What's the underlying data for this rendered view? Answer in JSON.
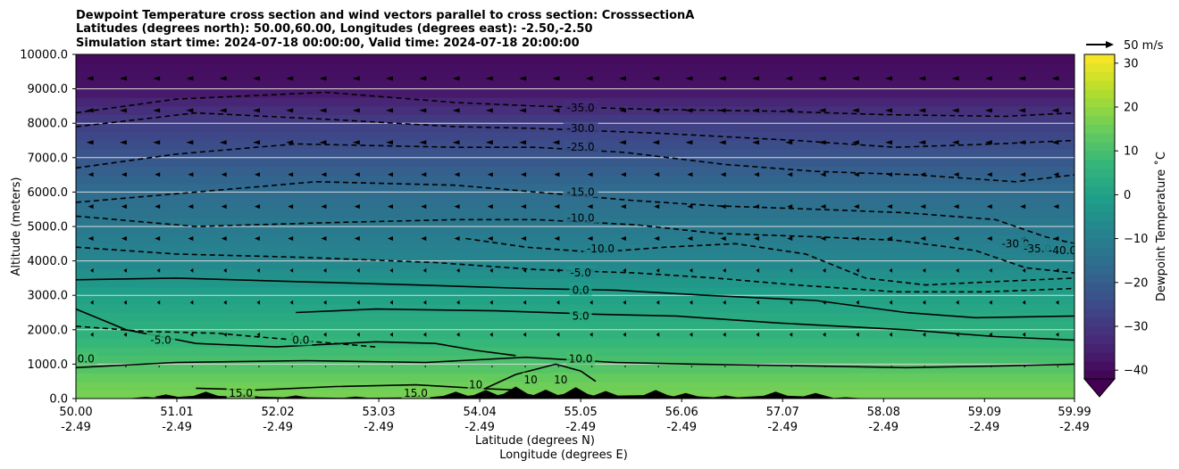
{
  "chart_data": {
    "type": "heatmap",
    "title_lines": [
      "Dewpoint Temperature cross section and wind vectors parallel to cross section: CrosssectionA",
      "Latitudes (degrees north): 50.00,60.00, Longitudes (degrees east): -2.50,-2.50",
      "Simulation start time: 2024-07-18 00:00:00, Valid time: 2024-07-18 20:00:00"
    ],
    "ylabel": "Altitude (meters)",
    "xlabel_lines": [
      "Latitude (degrees N)",
      "Longitude (degrees E)"
    ],
    "ylim": [
      0,
      10000
    ],
    "y_ticks": [
      "0.0",
      "1000.0",
      "2000.0",
      "3000.0",
      "4000.0",
      "5000.0",
      "6000.0",
      "7000.0",
      "8000.0",
      "9000.0",
      "10000.0"
    ],
    "y_tick_values": [
      0,
      1000,
      2000,
      3000,
      4000,
      5000,
      6000,
      7000,
      8000,
      9000,
      10000
    ],
    "x_ticks": [
      {
        "lat": "50.00",
        "lon": "-2.49"
      },
      {
        "lat": "51.01",
        "lon": "-2.49"
      },
      {
        "lat": "52.02",
        "lon": "-2.49"
      },
      {
        "lat": "53.03",
        "lon": "-2.49"
      },
      {
        "lat": "54.04",
        "lon": "-2.49"
      },
      {
        "lat": "55.05",
        "lon": "-2.49"
      },
      {
        "lat": "56.06",
        "lon": "-2.49"
      },
      {
        "lat": "57.07",
        "lon": "-2.49"
      },
      {
        "lat": "58.08",
        "lon": "-2.49"
      },
      {
        "lat": "59.09",
        "lon": "-2.49"
      },
      {
        "lat": "59.99",
        "lon": "-2.49"
      }
    ],
    "xlim": [
      50.0,
      59.99
    ],
    "grid": "horizontal",
    "colorbar": {
      "label": "Dewpoint Temperature ˚C",
      "ticks": [
        "−40",
        "−30",
        "−20",
        "−10",
        "0",
        "10",
        "20",
        "30"
      ],
      "tick_values": [
        -40,
        -30,
        -20,
        -10,
        0,
        10,
        20,
        30
      ],
      "range": [
        -42,
        32
      ],
      "extend": "min",
      "colormap": [
        "#440154",
        "#482878",
        "#3e4989",
        "#31688e",
        "#26828e",
        "#1f9e89",
        "#35b779",
        "#6ece58",
        "#b5de2b",
        "#fde725"
      ]
    },
    "quiver_key": "50 m/s",
    "terrain_color": "#000000",
    "dewpoint_profile": [
      {
        "alt": 0,
        "t": 17
      },
      {
        "alt": 500,
        "t": 15
      },
      {
        "alt": 1000,
        "t": 11
      },
      {
        "alt": 2000,
        "t": 5
      },
      {
        "alt": 3000,
        "t": 0
      },
      {
        "alt": 3500,
        "t": -4
      },
      {
        "alt": 4000,
        "t": -8
      },
      {
        "alt": 5000,
        "t": -12
      },
      {
        "alt": 6000,
        "t": -16
      },
      {
        "alt": 7000,
        "t": -22
      },
      {
        "alt": 8000,
        "t": -28
      },
      {
        "alt": 9000,
        "t": -38
      },
      {
        "alt": 10000,
        "t": -40
      }
    ],
    "contour_labels": [
      {
        "text": "-35.0",
        "lat": 55.05,
        "alt": 8450
      },
      {
        "text": "-30.0",
        "lat": 55.05,
        "alt": 7850
      },
      {
        "text": "-25.0",
        "lat": 55.05,
        "alt": 7300
      },
      {
        "text": "-15.0",
        "lat": 55.05,
        "alt": 6000
      },
      {
        "text": "-10.0",
        "lat": 55.05,
        "alt": 5250
      },
      {
        "text": "-10.0",
        "lat": 55.25,
        "alt": 4350
      },
      {
        "text": "-5.0",
        "lat": 55.05,
        "alt": 3650
      },
      {
        "text": "0.0",
        "lat": 55.05,
        "alt": 3150
      },
      {
        "text": "5.0",
        "lat": 55.05,
        "alt": 2400
      },
      {
        "text": "10.0",
        "lat": 55.05,
        "alt": 1150
      },
      {
        "text": "-5.0",
        "lat": 50.85,
        "alt": 1700
      },
      {
        "text": "0.0",
        "lat": 52.25,
        "alt": 1700
      },
      {
        "text": "15.0",
        "lat": 51.65,
        "alt": 150
      },
      {
        "text": "15.0",
        "lat": 53.4,
        "alt": 150
      },
      {
        "text": "10",
        "lat": 54.0,
        "alt": 400
      },
      {
        "text": "10",
        "lat": 54.55,
        "alt": 550
      },
      {
        "text": "10",
        "lat": 54.85,
        "alt": 550
      },
      {
        "text": "0.0",
        "lat": 50.1,
        "alt": 1150
      },
      {
        "text": "-30.0",
        "lat": 59.4,
        "alt": 4500
      },
      {
        "text": "-35.0",
        "lat": 59.62,
        "alt": 4350
      },
      {
        "text": "-40.0",
        "lat": 59.87,
        "alt": 4300
      }
    ],
    "contours": [
      {
        "level": "-35.0",
        "dashed": true,
        "pts": [
          [
            50.0,
            8300
          ],
          [
            51.0,
            8700
          ],
          [
            52.5,
            8900
          ],
          [
            53.8,
            8600
          ],
          [
            54.6,
            8500
          ],
          [
            55.8,
            8400
          ],
          [
            57.0,
            8350
          ],
          [
            58.1,
            8250
          ],
          [
            59.3,
            8200
          ],
          [
            59.99,
            8300
          ]
        ]
      },
      {
        "level": "-30.0",
        "dashed": true,
        "pts": [
          [
            50.0,
            7900
          ],
          [
            51.2,
            8300
          ],
          [
            52.6,
            8100
          ],
          [
            53.8,
            7900
          ],
          [
            54.6,
            7850
          ],
          [
            55.9,
            7700
          ],
          [
            57.2,
            7500
          ],
          [
            58.2,
            7300
          ],
          [
            59.2,
            7400
          ],
          [
            59.99,
            7500
          ]
        ]
      },
      {
        "level": "-25.0",
        "dashed": true,
        "pts": [
          [
            50.0,
            6700
          ],
          [
            51.0,
            7100
          ],
          [
            52.2,
            7400
          ],
          [
            53.8,
            7300
          ],
          [
            54.6,
            7300
          ],
          [
            55.5,
            7150
          ],
          [
            56.5,
            6800
          ],
          [
            57.4,
            6600
          ],
          [
            58.4,
            6500
          ],
          [
            59.4,
            6300
          ],
          [
            59.99,
            6500
          ]
        ]
      },
      {
        "level": "-15.0",
        "dashed": true,
        "pts": [
          [
            50.0,
            5700
          ],
          [
            51.2,
            6000
          ],
          [
            52.4,
            6300
          ],
          [
            53.8,
            6200
          ],
          [
            54.6,
            6000
          ],
          [
            55.6,
            5750
          ],
          [
            56.4,
            5600
          ],
          [
            57.4,
            5500
          ],
          [
            58.3,
            5400
          ],
          [
            59.2,
            5200
          ],
          [
            59.7,
            4700
          ],
          [
            59.99,
            4500
          ]
        ]
      },
      {
        "level": "-10.0",
        "dashed": true,
        "pts": [
          [
            50.0,
            5300
          ],
          [
            51.2,
            5000
          ],
          [
            52.4,
            5100
          ],
          [
            53.8,
            5200
          ],
          [
            54.6,
            5200
          ],
          [
            55.6,
            5050
          ],
          [
            56.4,
            4800
          ],
          [
            57.4,
            4700
          ],
          [
            58.2,
            4600
          ],
          [
            59.0,
            4300
          ],
          [
            59.5,
            3800
          ],
          [
            59.99,
            3650
          ]
        ]
      },
      {
        "level": "-10.0",
        "dashed": true,
        "pts": [
          [
            53.9,
            4650
          ],
          [
            54.5,
            4400
          ],
          [
            55.2,
            4250
          ],
          [
            55.9,
            4400
          ],
          [
            56.6,
            4500
          ],
          [
            57.3,
            4200
          ],
          [
            57.9,
            3500
          ],
          [
            58.5,
            3300
          ],
          [
            59.2,
            3400
          ],
          [
            59.99,
            3500
          ]
        ]
      },
      {
        "level": "-5.0",
        "dashed": true,
        "pts": [
          [
            50.0,
            4400
          ],
          [
            51.0,
            4200
          ],
          [
            52.3,
            4100
          ],
          [
            53.6,
            3950
          ],
          [
            54.6,
            3750
          ],
          [
            55.6,
            3650
          ],
          [
            56.4,
            3500
          ],
          [
            57.2,
            3300
          ],
          [
            58.2,
            3100
          ],
          [
            59.1,
            3100
          ],
          [
            59.99,
            3200
          ]
        ]
      },
      {
        "level": "0.0",
        "dashed": false,
        "pts": [
          [
            50.0,
            3450
          ],
          [
            51.0,
            3500
          ],
          [
            52.2,
            3400
          ],
          [
            53.4,
            3300
          ],
          [
            54.5,
            3200
          ],
          [
            55.4,
            3150
          ],
          [
            56.3,
            3000
          ],
          [
            57.4,
            2850
          ],
          [
            58.3,
            2500
          ],
          [
            59.0,
            2350
          ],
          [
            59.99,
            2400
          ]
        ]
      },
      {
        "level": "5.0",
        "dashed": false,
        "pts": [
          [
            52.2,
            2500
          ],
          [
            53.0,
            2600
          ],
          [
            54.2,
            2550
          ],
          [
            55.2,
            2450
          ],
          [
            56.0,
            2400
          ],
          [
            57.0,
            2200
          ],
          [
            58.3,
            2000
          ],
          [
            59.2,
            1800
          ],
          [
            59.99,
            1700
          ]
        ]
      },
      {
        "level": "10.0",
        "dashed": false,
        "pts": [
          [
            50.0,
            900
          ],
          [
            51.0,
            1050
          ],
          [
            52.3,
            1100
          ],
          [
            53.5,
            1050
          ],
          [
            54.5,
            1200
          ],
          [
            55.4,
            1050
          ],
          [
            56.2,
            1000
          ],
          [
            57.3,
            950
          ],
          [
            58.3,
            900
          ],
          [
            59.3,
            950
          ],
          [
            59.99,
            1000
          ]
        ]
      },
      {
        "level": "-5.0",
        "dashed": true,
        "pts": [
          [
            50.0,
            2100
          ],
          [
            50.7,
            1950
          ],
          [
            51.4,
            1900
          ],
          [
            52.2,
            1700
          ],
          [
            53.0,
            1500
          ]
        ]
      },
      {
        "level": "0.0",
        "dashed": false,
        "pts": [
          [
            50.0,
            2600
          ],
          [
            50.5,
            2000
          ],
          [
            51.2,
            1600
          ],
          [
            52.0,
            1500
          ],
          [
            53.0,
            1650
          ],
          [
            53.6,
            1600
          ],
          [
            54.0,
            1400
          ],
          [
            54.4,
            1250
          ]
        ]
      },
      {
        "level": "15.0",
        "dashed": false,
        "pts": [
          [
            51.2,
            300
          ],
          [
            51.8,
            250
          ],
          [
            52.6,
            350
          ],
          [
            53.4,
            400
          ],
          [
            54.0,
            300
          ],
          [
            54.4,
            250
          ]
        ]
      },
      {
        "level": "10",
        "dashed": false,
        "pts": [
          [
            54.1,
            300
          ],
          [
            54.4,
            700
          ],
          [
            54.8,
            1000
          ],
          [
            55.05,
            800
          ],
          [
            55.2,
            500
          ]
        ]
      }
    ],
    "terrain_bumps": [
      {
        "lat": 50.7,
        "alt": 50
      },
      {
        "lat": 50.9,
        "alt": 120
      },
      {
        "lat": 51.3,
        "alt": 200
      },
      {
        "lat": 51.7,
        "alt": 150
      },
      {
        "lat": 52.2,
        "alt": 90
      },
      {
        "lat": 52.8,
        "alt": 60
      },
      {
        "lat": 53.4,
        "alt": 80
      },
      {
        "lat": 53.8,
        "alt": 200
      },
      {
        "lat": 54.1,
        "alt": 250
      },
      {
        "lat": 54.4,
        "alt": 350
      },
      {
        "lat": 54.7,
        "alt": 260
      },
      {
        "lat": 55.0,
        "alt": 330
      },
      {
        "lat": 55.3,
        "alt": 220
      },
      {
        "lat": 55.8,
        "alt": 250
      },
      {
        "lat": 56.1,
        "alt": 160
      },
      {
        "lat": 56.5,
        "alt": 90
      },
      {
        "lat": 57.0,
        "alt": 200
      },
      {
        "lat": 57.4,
        "alt": 160
      },
      {
        "lat": 57.7,
        "alt": 40
      }
    ]
  }
}
